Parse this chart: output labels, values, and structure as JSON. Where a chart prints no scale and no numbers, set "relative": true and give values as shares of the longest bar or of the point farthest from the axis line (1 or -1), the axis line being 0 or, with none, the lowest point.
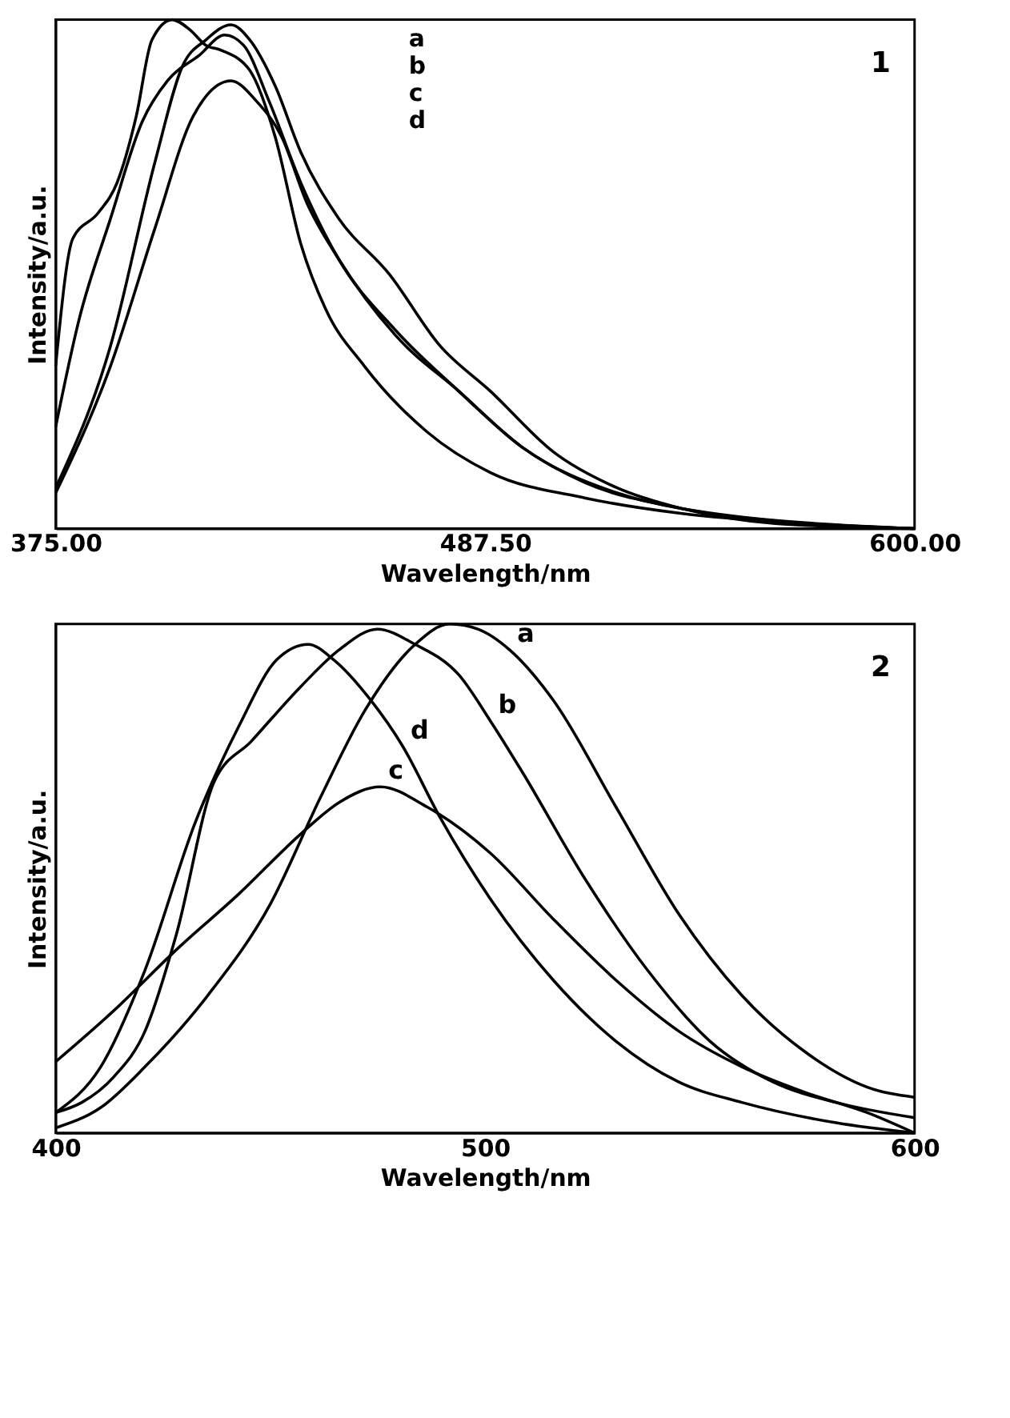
{
  "chart_data": [
    {
      "type": "line",
      "relative": true,
      "xlabel": "Wavelength/nm",
      "ylabel": "Intensity/a.u.",
      "xlim": [
        375,
        600
      ],
      "xticks": [
        {
          "value": 375,
          "label": "375.00"
        },
        {
          "value": 487.5,
          "label": "487.50"
        },
        {
          "value": 600,
          "label": "600.00"
        }
      ],
      "grid": false,
      "marker": "none",
      "line_style": "solid",
      "series": [
        {
          "color": "#000000",
          "x": [
            375,
            389.4,
            401.0,
            408.3,
            414.3,
            420.9,
            425.9,
            432.5,
            439.2,
            449.1,
            462.4,
            475.6,
            488.9,
            505.5,
            522.1,
            538.7,
            563.5,
            600
          ],
          "values": [
            0.08,
            0.36,
            0.72,
            0.91,
            0.96,
            0.99,
            0.96,
            0.87,
            0.74,
            0.61,
            0.5,
            0.36,
            0.27,
            0.15,
            0.08,
            0.04,
            0.01,
            0
          ]
        },
        {
          "color": "#000000",
          "x": [
            375,
            381.1,
            389.4,
            397.7,
            404.3,
            412.6,
            419.3,
            424.2,
            430.9,
            439.2,
            449.1,
            464.0,
            480.6,
            497.2,
            513.8,
            538.7,
            571.8,
            600
          ],
          "values": [
            0.2,
            0.41,
            0.61,
            0.8,
            0.88,
            0.93,
            0.97,
            0.95,
            0.84,
            0.68,
            0.53,
            0.39,
            0.27,
            0.16,
            0.09,
            0.04,
            0.01,
            0
          ]
        },
        {
          "color": "#000000",
          "x": [
            375,
            379.5,
            386.1,
            391.1,
            396.1,
            400.2,
            405.5,
            410.2,
            414.3,
            418.4,
            425.9,
            432.5,
            439.2,
            445.8,
            455.8,
            472.3,
            488.9,
            513.8,
            538.7,
            571.8,
            600
          ],
          "values": [
            0.32,
            0.57,
            0.62,
            0.68,
            0.81,
            0.96,
            1,
            0.98,
            0.95,
            0.94,
            0.9,
            0.77,
            0.56,
            0.43,
            0.32,
            0.19,
            0.11,
            0.06,
            0.03,
            0.01,
            0
          ]
        },
        {
          "color": "#000000",
          "x": [
            375,
            389.4,
            401.0,
            411.0,
            420.9,
            427.6,
            434.2,
            440.8,
            449.1,
            464.0,
            480.6,
            497.2,
            522.1,
            538.7,
            600
          ],
          "values": [
            0.07,
            0.32,
            0.59,
            0.81,
            0.88,
            0.84,
            0.77,
            0.64,
            0.53,
            0.38,
            0.27,
            0.16,
            0.07,
            0.04,
            0
          ]
        }
      ],
      "annotations": [
        "a",
        "b",
        "c",
        "d",
        "1"
      ]
    },
    {
      "type": "line",
      "relative": true,
      "xlabel": "Wavelength/nm",
      "ylabel": "Intensity/a.u.",
      "xlim": [
        400,
        600
      ],
      "xticks": [
        400,
        500,
        600
      ],
      "grid": false,
      "marker": "none",
      "line_style": "solid",
      "series": [
        {
          "color": "#000000",
          "x": [
            400,
            410.5,
            420.8,
            435.4,
            450.0,
            461.7,
            472.0,
            483.7,
            491.7,
            498.3,
            505.6,
            515.9,
            530.5,
            545.1,
            559.8,
            574.4,
            589.0,
            600
          ],
          "values": [
            0.01,
            0.05,
            0.13,
            0.27,
            0.45,
            0.66,
            0.83,
            0.96,
            1,
            0.99,
            0.95,
            0.85,
            0.64,
            0.43,
            0.27,
            0.16,
            0.09,
            0.07
          ]
        },
        {
          "color": "#000000",
          "x": [
            400,
            406.1,
            413.5,
            420.8,
            428.1,
            436.9,
            445.6,
            457.4,
            466.1,
            474.9,
            483.7,
            493.9,
            501.2,
            508.6,
            523.2,
            537.8,
            552.4,
            567.1,
            581.7,
            600
          ],
          "values": [
            0.04,
            0.06,
            0.11,
            0.2,
            0.39,
            0.69,
            0.77,
            0.88,
            0.95,
            0.99,
            0.96,
            0.9,
            0.81,
            0.71,
            0.5,
            0.32,
            0.18,
            0.1,
            0.06,
            0.03
          ]
        },
        {
          "color": "#000000",
          "x": [
            400,
            413.5,
            428.1,
            442.7,
            457.4,
            466.1,
            475.6,
            486.6,
            501.2,
            515.9,
            530.5,
            545.1,
            559.8,
            574.4,
            589.0,
            600
          ],
          "values": [
            0.14,
            0.24,
            0.36,
            0.47,
            0.59,
            0.65,
            0.68,
            0.64,
            0.55,
            0.42,
            0.3,
            0.2,
            0.13,
            0.08,
            0.04,
            0.0
          ]
        },
        {
          "color": "#000000",
          "x": [
            400,
            410.5,
            420.8,
            432.5,
            442.7,
            451.5,
            458.8,
            464.7,
            473.4,
            480.8,
            489.5,
            501.2,
            515.9,
            530.5,
            545.1,
            559.8,
            581.7,
            600
          ],
          "values": [
            0.04,
            0.13,
            0.32,
            0.61,
            0.8,
            0.93,
            0.96,
            0.93,
            0.85,
            0.76,
            0.62,
            0.46,
            0.3,
            0.18,
            0.1,
            0.06,
            0.02,
            0
          ]
        }
      ],
      "annotations": [
        {
          "text": "a",
          "x": 505.6,
          "y": 0.95
        },
        {
          "text": "b",
          "x": 501.2,
          "y": 0.81
        },
        {
          "text": "d",
          "x": 480.8,
          "y": 0.76
        },
        {
          "text": "c",
          "x": 475.6,
          "y": 0.68
        },
        "2"
      ]
    }
  ]
}
